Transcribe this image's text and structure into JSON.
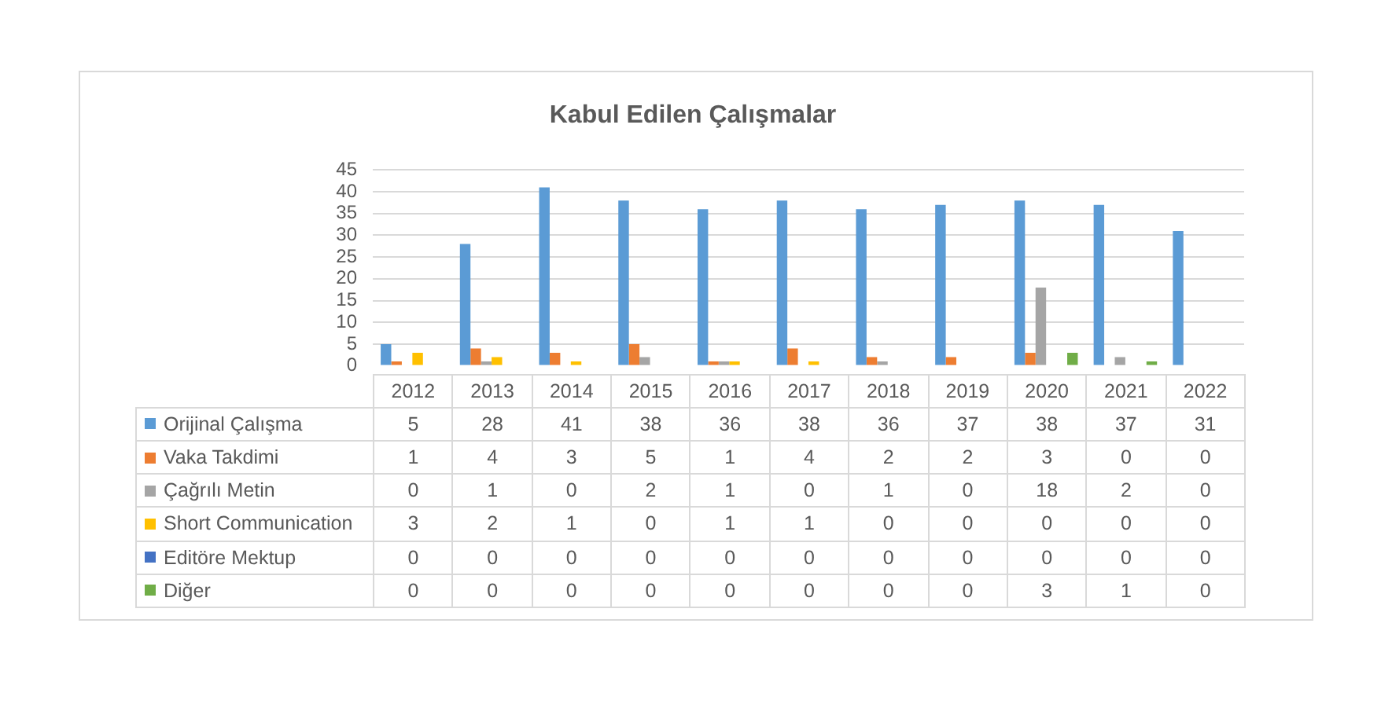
{
  "chart_data": {
    "type": "bar",
    "title": "Kabul Edilen Çalışmalar",
    "categories": [
      "2012",
      "2013",
      "2014",
      "2015",
      "2016",
      "2017",
      "2018",
      "2019",
      "2020",
      "2021",
      "2022"
    ],
    "series": [
      {
        "name": "Orijinal Çalışma",
        "color": "#5b9bd5",
        "values": [
          5,
          28,
          41,
          38,
          36,
          38,
          36,
          37,
          38,
          37,
          31
        ]
      },
      {
        "name": "Vaka Takdimi",
        "color": "#ed7d31",
        "values": [
          1,
          4,
          3,
          5,
          1,
          4,
          2,
          2,
          3,
          0,
          0
        ]
      },
      {
        "name": "Çağrılı Metin",
        "color": "#a5a5a5",
        "values": [
          0,
          1,
          0,
          2,
          1,
          0,
          1,
          0,
          18,
          2,
          0
        ]
      },
      {
        "name": "Short Communication",
        "color": "#ffc000",
        "values": [
          3,
          2,
          1,
          0,
          1,
          1,
          0,
          0,
          0,
          0,
          0
        ]
      },
      {
        "name": "Editöre Mektup",
        "color": "#4472c4",
        "values": [
          0,
          0,
          0,
          0,
          0,
          0,
          0,
          0,
          0,
          0,
          0
        ]
      },
      {
        "name": "Diğer",
        "color": "#70ad47",
        "values": [
          0,
          0,
          0,
          0,
          0,
          0,
          0,
          0,
          3,
          1,
          0
        ]
      }
    ],
    "ylim": [
      0,
      45
    ],
    "yticks": [
      0,
      5,
      10,
      15,
      20,
      25,
      30,
      35,
      40,
      45
    ],
    "grid": "y",
    "legend": "bottom",
    "data_labels": true
  }
}
